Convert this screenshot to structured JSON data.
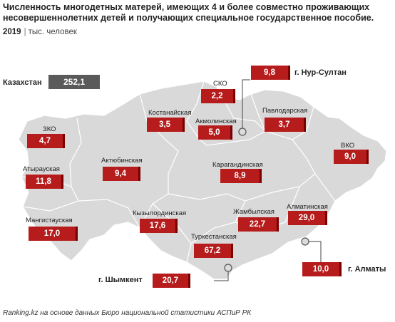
{
  "title": "Численность многодетных матерей, имеющих 4 и более совместно проживающих несовершеннолетних детей и получающих специальное государственное пособие.",
  "year": "2019",
  "unit": "тыс. человек",
  "source": "Ranking.kz на основе данных Бюро национальной статистики АСПиР РК",
  "colors": {
    "value_box": "#b71c1c",
    "total_box": "#5a5a5a",
    "map_fill": "#d9d9d9",
    "map_border": "#ffffff"
  },
  "chart_data": {
    "type": "map",
    "total": {
      "name": "Казахстан",
      "value": "252,1"
    },
    "regions": [
      {
        "name": "СКО",
        "value": "2,2"
      },
      {
        "name": "Костанайская",
        "value": "3,5"
      },
      {
        "name": "Акмолинская",
        "value": "5,0"
      },
      {
        "name": "Павлодарская",
        "value": "3,7"
      },
      {
        "name": "ЗКО",
        "value": "4,7"
      },
      {
        "name": "Актюбинская",
        "value": "9,4"
      },
      {
        "name": "Карагандинская",
        "value": "8,9"
      },
      {
        "name": "ВКО",
        "value": "9,0"
      },
      {
        "name": "Атырауская",
        "value": "11,8"
      },
      {
        "name": "Мангистауская",
        "value": "17,0"
      },
      {
        "name": "Кызылординская",
        "value": "17,6"
      },
      {
        "name": "Жамбылская",
        "value": "22,7"
      },
      {
        "name": "Алматинская",
        "value": "29,0"
      },
      {
        "name": "Туркестанская",
        "value": "67,2"
      },
      {
        "name": "г. Нур-Султан",
        "value": "9,8"
      },
      {
        "name": "г. Алматы",
        "value": "10,0"
      },
      {
        "name": "г. Шымкент",
        "value": "20,7"
      }
    ]
  }
}
